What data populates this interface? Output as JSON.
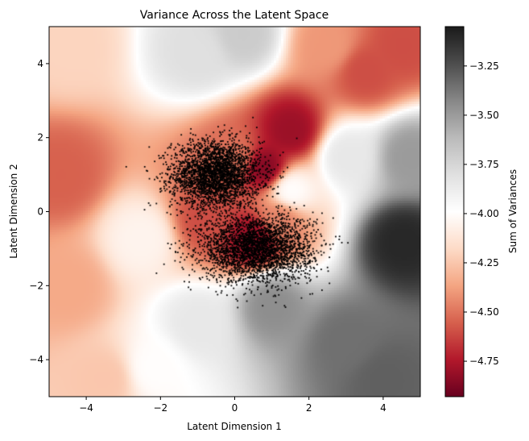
{
  "chart_data": {
    "type": "heatmap",
    "title": "Variance Across the Latent Space",
    "xlabel": "Latent Dimension 1",
    "ylabel": "Latent Dimension 2",
    "xlim": [
      -5,
      5
    ],
    "ylim": [
      -5,
      5
    ],
    "xticks": [
      -4,
      -2,
      0,
      2,
      4
    ],
    "yticks": [
      -4,
      -2,
      0,
      2,
      4
    ],
    "xtick_labels": [
      "−4",
      "−2",
      "0",
      "2",
      "4"
    ],
    "ytick_labels": [
      "−4",
      "−2",
      "0",
      "2",
      "4"
    ],
    "grid": false,
    "colormap": "RdGy",
    "colorbar": {
      "label": "Sum of Variances",
      "range": [
        -4.93,
        -3.05
      ],
      "ticks": [
        -3.25,
        -3.5,
        -3.75,
        -4.0,
        -4.25,
        -4.5,
        -4.75
      ],
      "tick_labels": [
        "−3.25",
        "−3.50",
        "−3.75",
        "−4.00",
        "−4.25",
        "−4.50",
        "−4.75"
      ]
    },
    "field_regions": [
      {
        "x": -4.7,
        "y": 1.0,
        "value": -4.55
      },
      {
        "x": -4.5,
        "y": 4.5,
        "value": -4.2
      },
      {
        "x": -1.0,
        "y": 4.3,
        "value": -3.8
      },
      {
        "x": 0.2,
        "y": 4.8,
        "value": -3.7
      },
      {
        "x": 2.5,
        "y": 4.5,
        "value": -4.4
      },
      {
        "x": 4.5,
        "y": 4.5,
        "value": -4.6
      },
      {
        "x": 3.5,
        "y": 3.8,
        "value": -4.6
      },
      {
        "x": 0.0,
        "y": 1.5,
        "value": -4.5
      },
      {
        "x": 1.5,
        "y": 2.2,
        "value": -4.8
      },
      {
        "x": 0.8,
        "y": 1.2,
        "value": -4.85
      },
      {
        "x": 1.5,
        "y": 0.6,
        "value": -4.0
      },
      {
        "x": 3.0,
        "y": 1.5,
        "value": -3.85
      },
      {
        "x": 4.7,
        "y": 1.5,
        "value": -3.5
      },
      {
        "x": -4.5,
        "y": -2.0,
        "value": -4.35
      },
      {
        "x": -3.5,
        "y": -4.5,
        "value": -4.25
      },
      {
        "x": -2.2,
        "y": -4.2,
        "value": -4.0
      },
      {
        "x": -1.0,
        "y": -3.0,
        "value": -3.85
      },
      {
        "x": -2.5,
        "y": -0.7,
        "value": -4.05
      },
      {
        "x": -0.8,
        "y": -0.2,
        "value": -4.6
      },
      {
        "x": 0.5,
        "y": -0.7,
        "value": -4.8
      },
      {
        "x": 1.2,
        "y": -0.2,
        "value": -4.45
      },
      {
        "x": 1.0,
        "y": -2.5,
        "value": -3.45
      },
      {
        "x": 3.0,
        "y": -3.5,
        "value": -3.35
      },
      {
        "x": 4.5,
        "y": -0.8,
        "value": -3.1
      },
      {
        "x": 4.0,
        "y": -4.5,
        "value": -3.3
      }
    ],
    "scatter_clusters": [
      {
        "name": "upper cluster",
        "center": [
          -0.5,
          1.0
        ],
        "sd": [
          0.6,
          0.45
        ],
        "points": 3000,
        "color": "#000000"
      },
      {
        "name": "lower cluster",
        "center": [
          0.6,
          -1.0
        ],
        "sd": [
          0.75,
          0.45
        ],
        "points": 3000,
        "color": "#000000"
      }
    ]
  }
}
